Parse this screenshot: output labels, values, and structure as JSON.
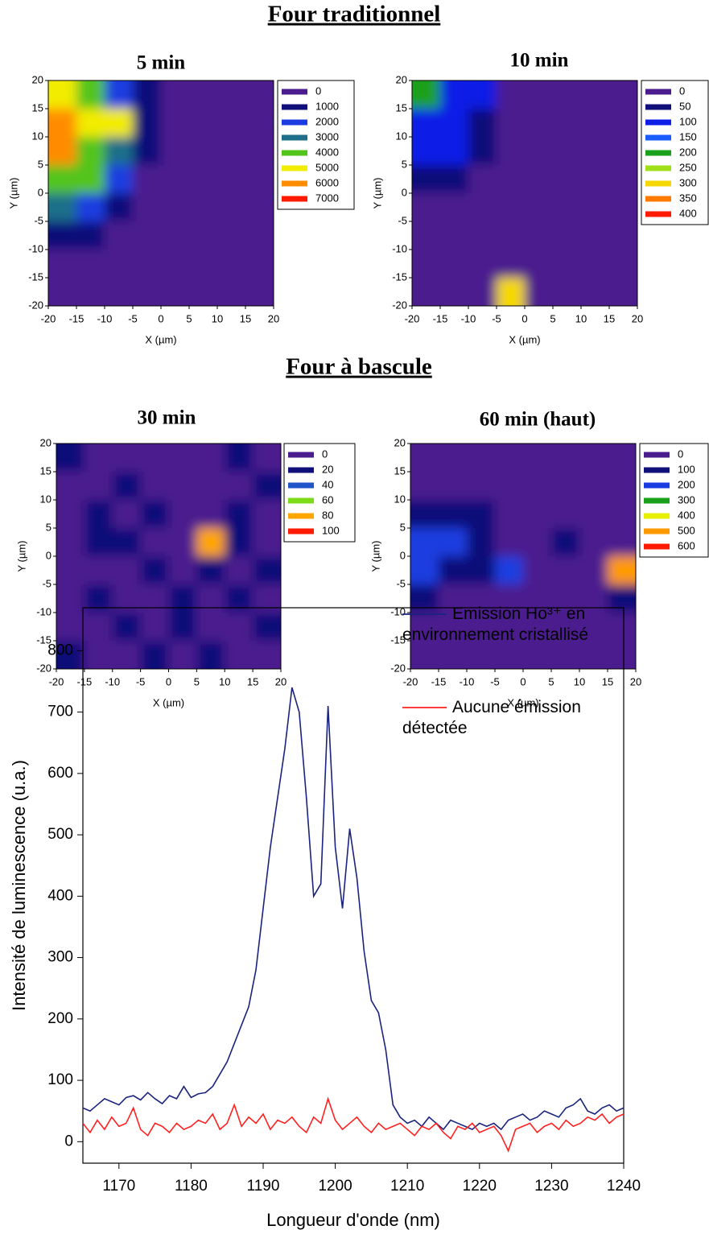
{
  "headings": [
    "Four traditionnel",
    "Four à bascule"
  ],
  "chart_data": [
    {
      "type": "contour",
      "title": "5 min",
      "xlabel": "X (µm)",
      "ylabel": "Y (µm)",
      "xlim": [
        -20,
        20
      ],
      "ylim": [
        -20,
        20
      ],
      "xticks": [
        -20,
        -15,
        -10,
        -5,
        0,
        5,
        10,
        15,
        20
      ],
      "yticks": [
        -20,
        -15,
        -10,
        -5,
        0,
        5,
        10,
        15,
        20
      ],
      "x": [
        -17.5,
        -12.5,
        -7.5,
        -2.5,
        2.5,
        7.5,
        12.5,
        17.5
      ],
      "y": [
        17.5,
        12.5,
        7.5,
        2.5,
        -2.5,
        -7.5,
        -12.5,
        -17.5
      ],
      "z": [
        [
          5000,
          4500,
          2500,
          1000,
          300,
          200,
          200,
          200
        ],
        [
          6000,
          5500,
          5200,
          1500,
          300,
          200,
          200,
          200
        ],
        [
          6500,
          4500,
          3500,
          1200,
          200,
          200,
          200,
          200
        ],
        [
          4500,
          4200,
          2500,
          800,
          200,
          200,
          200,
          200
        ],
        [
          3500,
          2500,
          1200,
          300,
          200,
          200,
          200,
          300
        ],
        [
          1500,
          1000,
          300,
          200,
          200,
          200,
          400,
          600
        ],
        [
          300,
          300,
          200,
          200,
          200,
          200,
          300,
          500
        ],
        [
          200,
          200,
          200,
          200,
          200,
          200,
          200,
          300
        ]
      ],
      "levels": [
        0,
        1000,
        2000,
        3000,
        4000,
        5000,
        6000,
        7000
      ],
      "colors": [
        "#4b1c8e",
        "#10107a",
        "#1a3ce0",
        "#1f6f8a",
        "#52c41a",
        "#f2ec00",
        "#ff8c00",
        "#ff1a00"
      ]
    },
    {
      "type": "contour",
      "title": "10 min",
      "xlabel": "X (µm)",
      "ylabel": "Y (µm)",
      "xlim": [
        -20,
        20
      ],
      "ylim": [
        -20,
        20
      ],
      "xticks": [
        -20,
        -15,
        -10,
        -5,
        0,
        5,
        10,
        15,
        20
      ],
      "yticks": [
        -20,
        -15,
        -10,
        -5,
        0,
        5,
        10,
        15,
        20
      ],
      "x": [
        -17.5,
        -12.5,
        -7.5,
        -2.5,
        2.5,
        7.5,
        12.5,
        17.5
      ],
      "y": [
        17.5,
        12.5,
        7.5,
        2.5,
        -2.5,
        -7.5,
        -12.5,
        -17.5
      ],
      "z": [
        [
          220,
          130,
          110,
          30,
          20,
          20,
          20,
          20
        ],
        [
          130,
          120,
          80,
          20,
          20,
          20,
          20,
          20
        ],
        [
          110,
          100,
          60,
          20,
          20,
          20,
          20,
          20
        ],
        [
          80,
          60,
          30,
          20,
          20,
          20,
          20,
          20
        ],
        [
          40,
          30,
          20,
          20,
          20,
          20,
          20,
          20
        ],
        [
          20,
          20,
          20,
          20,
          20,
          20,
          20,
          20
        ],
        [
          20,
          20,
          20,
          40,
          20,
          20,
          30,
          20
        ],
        [
          20,
          20,
          20,
          300,
          30,
          20,
          20,
          20
        ]
      ],
      "levels": [
        0,
        50,
        100,
        150,
        200,
        250,
        300,
        350,
        400
      ],
      "colors": [
        "#4b1c8e",
        "#10107a",
        "#0a1ee6",
        "#1a5cff",
        "#1aa01a",
        "#a0e01a",
        "#f5d800",
        "#ff7a00",
        "#ff1a00"
      ]
    },
    {
      "type": "contour",
      "title": "30 min",
      "xlabel": "X (µm)",
      "ylabel": "Y (µm)",
      "xlim": [
        -20,
        20
      ],
      "ylim": [
        -20,
        20
      ],
      "xticks": [
        -20,
        -15,
        -10,
        -5,
        0,
        5,
        10,
        15,
        20
      ],
      "yticks": [
        -20,
        -15,
        -10,
        -5,
        0,
        5,
        10,
        15,
        20
      ],
      "x": [
        -17.5,
        -12.5,
        -7.5,
        -2.5,
        2.5,
        7.5,
        12.5,
        17.5
      ],
      "y": [
        17.5,
        12.5,
        7.5,
        2.5,
        -2.5,
        -7.5,
        -12.5,
        -17.5
      ],
      "z": [
        [
          25,
          10,
          10,
          10,
          10,
          10,
          25,
          10
        ],
        [
          10,
          10,
          20,
          10,
          10,
          10,
          10,
          20
        ],
        [
          10,
          25,
          10,
          20,
          10,
          10,
          25,
          10
        ],
        [
          10,
          20,
          25,
          10,
          10,
          90,
          20,
          10
        ],
        [
          10,
          10,
          10,
          25,
          10,
          20,
          10,
          20
        ],
        [
          10,
          25,
          10,
          10,
          20,
          10,
          25,
          10
        ],
        [
          10,
          10,
          20,
          10,
          25,
          10,
          10,
          20
        ],
        [
          20,
          10,
          10,
          25,
          10,
          20,
          10,
          10
        ]
      ],
      "levels": [
        0,
        20,
        40,
        60,
        80,
        100
      ],
      "colors": [
        "#4b1c8e",
        "#10107a",
        "#1f55c8",
        "#7ddc1a",
        "#ffa500",
        "#ff1a00"
      ]
    },
    {
      "type": "contour",
      "title": "60 min (haut)",
      "xlabel": "X (µm)",
      "ylabel": "Y (µm)",
      "xlim": [
        -20,
        20
      ],
      "ylim": [
        -20,
        20
      ],
      "xticks": [
        -20,
        -15,
        -10,
        -5,
        0,
        5,
        10,
        15,
        20
      ],
      "yticks": [
        -20,
        -15,
        -10,
        -5,
        0,
        5,
        10,
        15,
        20
      ],
      "x": [
        -17.5,
        -12.5,
        -7.5,
        -2.5,
        2.5,
        7.5,
        12.5,
        17.5
      ],
      "y": [
        17.5,
        12.5,
        7.5,
        2.5,
        -2.5,
        -7.5,
        -12.5,
        -17.5
      ],
      "z": [
        [
          40,
          30,
          30,
          30,
          30,
          30,
          30,
          40
        ],
        [
          80,
          60,
          40,
          30,
          30,
          30,
          30,
          40
        ],
        [
          180,
          150,
          100,
          40,
          30,
          60,
          40,
          40
        ],
        [
          250,
          200,
          130,
          40,
          30,
          160,
          60,
          80
        ],
        [
          200,
          170,
          110,
          260,
          30,
          40,
          60,
          500
        ],
        [
          100,
          80,
          60,
          40,
          30,
          30,
          40,
          120
        ],
        [
          40,
          30,
          30,
          30,
          30,
          30,
          30,
          40
        ],
        [
          30,
          30,
          30,
          30,
          30,
          30,
          30,
          30
        ]
      ],
      "levels": [
        0,
        100,
        200,
        300,
        400,
        500,
        600
      ],
      "colors": [
        "#4b1c8e",
        "#10107a",
        "#1a3ce0",
        "#1aa01a",
        "#e6f000",
        "#ff9a00",
        "#ff1a00"
      ]
    },
    {
      "type": "line",
      "xlabel": "Longueur d'onde (nm)",
      "ylabel": "Intensité de luminescence (u.a.)",
      "xlim": [
        1165,
        1240
      ],
      "ylim": [
        -35,
        870
      ],
      "xticks": [
        1170,
        1180,
        1190,
        1200,
        1210,
        1220,
        1230,
        1240
      ],
      "yticks": [
        0,
        100,
        200,
        300,
        400,
        500,
        600,
        700,
        800
      ],
      "legend": "upper right",
      "x": [
        1165,
        1166,
        1167,
        1168,
        1169,
        1170,
        1171,
        1172,
        1173,
        1174,
        1175,
        1176,
        1177,
        1178,
        1179,
        1180,
        1181,
        1182,
        1183,
        1184,
        1185,
        1186,
        1187,
        1188,
        1189,
        1190,
        1191,
        1192,
        1193,
        1194,
        1195,
        1196,
        1197,
        1198,
        1199,
        1200,
        1201,
        1202,
        1203,
        1204,
        1205,
        1206,
        1207,
        1208,
        1209,
        1210,
        1211,
        1212,
        1213,
        1214,
        1215,
        1216,
        1217,
        1218,
        1219,
        1220,
        1221,
        1222,
        1223,
        1224,
        1225,
        1226,
        1227,
        1228,
        1229,
        1230,
        1231,
        1232,
        1233,
        1234,
        1235,
        1236,
        1237,
        1238,
        1239,
        1240
      ],
      "series": [
        {
          "name": "Emission Ho³⁺ en environnement cristallisé",
          "color": "#1a237e",
          "values": [
            55,
            50,
            60,
            70,
            65,
            60,
            72,
            75,
            68,
            80,
            70,
            62,
            75,
            70,
            90,
            72,
            78,
            80,
            90,
            110,
            130,
            160,
            190,
            220,
            280,
            380,
            480,
            560,
            640,
            740,
            700,
            560,
            400,
            420,
            710,
            480,
            380,
            510,
            430,
            310,
            230,
            210,
            150,
            60,
            40,
            30,
            35,
            25,
            40,
            30,
            20,
            35,
            30,
            25,
            20,
            30,
            25,
            30,
            20,
            35,
            40,
            45,
            35,
            40,
            50,
            45,
            40,
            55,
            60,
            70,
            50,
            45,
            55,
            60,
            50,
            55
          ]
        },
        {
          "name": "Aucune émission détectée",
          "color": "#ff2020",
          "values": [
            30,
            15,
            35,
            20,
            40,
            25,
            30,
            55,
            20,
            10,
            30,
            25,
            15,
            30,
            20,
            25,
            35,
            30,
            45,
            20,
            30,
            60,
            25,
            40,
            30,
            45,
            20,
            35,
            30,
            40,
            25,
            15,
            40,
            30,
            70,
            35,
            20,
            30,
            40,
            25,
            15,
            30,
            20,
            25,
            30,
            20,
            10,
            25,
            20,
            30,
            15,
            5,
            25,
            20,
            30,
            15,
            20,
            25,
            10,
            -15,
            20,
            25,
            30,
            15,
            25,
            30,
            20,
            35,
            25,
            30,
            40,
            35,
            45,
            30,
            40,
            45
          ]
        }
      ]
    }
  ]
}
